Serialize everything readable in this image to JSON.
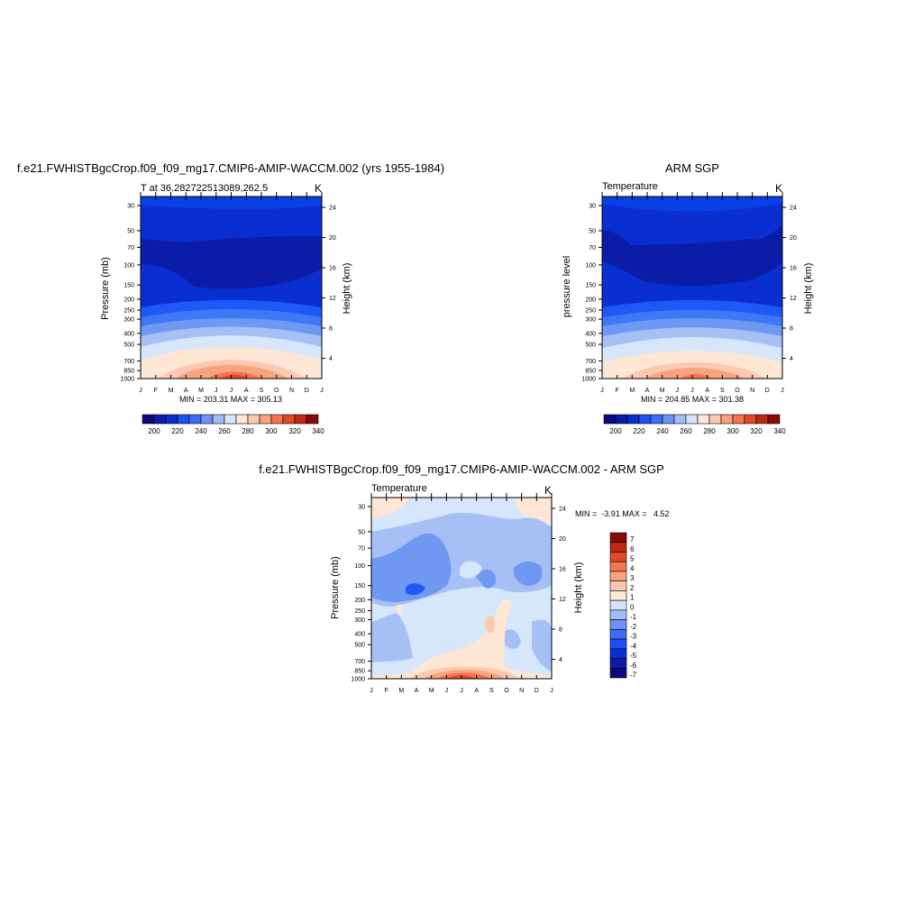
{
  "palette": {
    "levels": [
      "#0a0a7e",
      "#0a1ca8",
      "#0a2fd0",
      "#1e4ff0",
      "#3f6cf6",
      "#6f91f3",
      "#a2bdf5",
      "#d3e4fb",
      "#fde8d9",
      "#fcc9b0",
      "#f8a27f",
      "#f27450",
      "#e14a26",
      "#c0281a",
      "#8a0a0a"
    ],
    "cool": [
      "#0024d8",
      "#0a2fd0",
      "#0a40e8",
      "#1e58f6",
      "#3f78f6",
      "#6f98f3",
      "#a6c0f6",
      "#d6e6fb",
      "#fde6d4"
    ],
    "warm": [
      "#fde6d4",
      "#fcc9b0",
      "#f8a27f",
      "#f27450",
      "#e14a26"
    ]
  },
  "months": [
    "J",
    "F",
    "M",
    "A",
    "M",
    "J",
    "J",
    "A",
    "S",
    "O",
    "N",
    "D",
    "J"
  ],
  "pressure_ticks": [
    "30",
    "50",
    "70",
    "100",
    "150",
    "200",
    "250",
    "300",
    "400",
    "500",
    "700",
    "850",
    "1000"
  ],
  "height_ticks": [
    "24",
    "20",
    "16",
    "12",
    "8",
    "4"
  ],
  "chart_data": [
    {
      "type": "heatmap",
      "title": "f.e21.FWHISTBgcCrop.f09_f09_mg17.CMIP6-AMIP-WACCM.002 (yrs 1955-1984)",
      "left_label": "T at 36.282722513089,262.5",
      "right_label": "K",
      "xlabel": "",
      "ylabel": "Pressure (mb)",
      "ylabel_right": "Height (km)",
      "stats": "MIN = 203.31 MAX = 305.13",
      "min": 203.31,
      "max": 305.13,
      "colorbar_ticks": [
        "200",
        "220",
        "240",
        "260",
        "280",
        "300",
        "320",
        "340"
      ]
    },
    {
      "type": "heatmap",
      "title": "ARM SGP",
      "left_label": "Temperature",
      "right_label": "K",
      "xlabel": "",
      "ylabel": "pressure level",
      "ylabel_right": "Height (km)",
      "stats": "MIN = 204.85 MAX = 301.38",
      "min": 204.85,
      "max": 301.38,
      "colorbar_ticks": [
        "200",
        "220",
        "240",
        "260",
        "280",
        "300",
        "320",
        "340"
      ]
    },
    {
      "type": "heatmap",
      "title": "f.e21.FWHISTBgcCrop.f09_f09_mg17.CMIP6-AMIP-WACCM.002 - ARM SGP",
      "left_label": "Temperature",
      "right_label": "K",
      "xlabel": "",
      "ylabel": "Pressure (mb)",
      "ylabel_right": "Height (km)",
      "stats": "MIN =  -3.91 MAX =   4.52",
      "min": -3.91,
      "max": 4.52,
      "colorbar_ticks": [
        "7",
        "6",
        "5",
        "4",
        "3",
        "2",
        "1",
        "0",
        "-1",
        "-2",
        "-3",
        "-4",
        "-5",
        "-6",
        "-7"
      ]
    }
  ]
}
